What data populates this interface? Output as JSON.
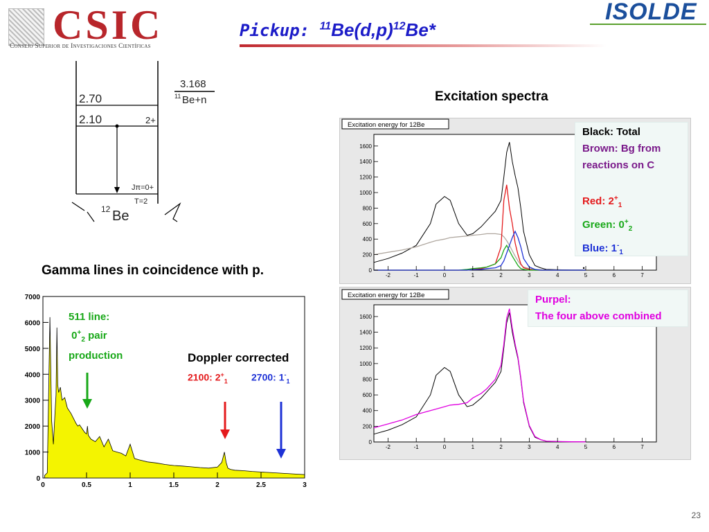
{
  "header": {
    "csic_name": "CSIC",
    "csic_full": "Consejo Superior de Investigaciones Científicas",
    "title_prefix": "Pickup: ",
    "title_sup1": "11",
    "title_mid": "Be(d,p)",
    "title_sup2": "12",
    "title_end": "Be*",
    "isolde_logo": "ISOLDE"
  },
  "level_scheme": {
    "threshold_value": "3.168",
    "threshold_label": "11Be+n",
    "threshold_sup": "11",
    "threshold_base": "Be+n",
    "level_1": "2.70",
    "level_2": "2.10",
    "level_2_spin": "2+",
    "ground_spin": "Jπ=0+",
    "ground_isospin": "T=2",
    "nucleus_sup": "12",
    "nucleus_base": "Be"
  },
  "captions": {
    "gamma": "Gamma lines in coincidence with p.",
    "excitation": "Excitation spectra"
  },
  "gamma_annotations": {
    "line511_a": "511 line:",
    "line511_b_pre": "0",
    "line511_b_sup": "+",
    "line511_b_sub": "2",
    "line511_b_post": " pair",
    "line511_c": "production",
    "doppler": "Doppler  corrected",
    "red_label_pre": "2100: 2",
    "red_label_sup": "+",
    "red_label_sub": "1",
    "blue_label_pre": "2700: 1",
    "blue_label_sup": "-",
    "blue_label_sub": "1"
  },
  "legend_top": {
    "black": "Black: Total",
    "brown_1": "Brown: Bg from",
    "brown_2": "reactions on C",
    "red_pre": "Red: 2",
    "red_sup": "+",
    "red_sub": "1",
    "green_pre": "Green: 0",
    "green_sup": "+",
    "green_sub": "2",
    "blue_pre": "Blue: 1",
    "blue_sup": "-",
    "blue_sub": "1",
    "dot": "."
  },
  "legend_bottom": {
    "line1": "Purpel:",
    "line2": "The four above combined"
  },
  "slide_number": "23",
  "colors": {
    "red": "#e41a1c",
    "green": "#18a818",
    "blue": "#1e32d6",
    "purple": "#7a1a8a",
    "magenta": "#e000e0",
    "brown": "#b0a8a0",
    "yellow": "#f4f400",
    "title_blue": "#1c1cc8"
  },
  "chart_data": [
    {
      "type": "area",
      "title": "",
      "xlabel": "",
      "ylabel": "",
      "xlim": [
        0,
        3
      ],
      "ylim": [
        0,
        7000
      ],
      "x_ticks": [
        "0",
        "0.5",
        "1",
        "1.5",
        "2",
        "2.5",
        "3"
      ],
      "y_ticks": [
        "0",
        "1000",
        "2000",
        "3000",
        "4000",
        "5000",
        "6000",
        "7000"
      ],
      "series": [
        {
          "x": [
            0.02,
            0.05,
            0.08,
            0.1,
            0.12,
            0.14,
            0.15,
            0.16,
            0.17,
            0.18,
            0.2,
            0.22,
            0.25,
            0.28,
            0.3,
            0.32,
            0.35,
            0.38,
            0.4,
            0.42,
            0.45,
            0.48,
            0.5,
            0.51,
            0.52,
            0.55,
            0.6,
            0.65,
            0.7,
            0.75,
            0.8,
            0.85,
            0.9,
            0.95,
            1.0,
            1.05,
            1.1,
            1.2,
            1.3,
            1.4,
            1.5,
            1.6,
            1.7,
            1.8,
            1.9,
            2.0,
            2.05,
            2.08,
            2.1,
            2.12,
            2.15,
            2.2,
            2.3,
            2.4,
            2.5,
            2.6,
            2.7,
            2.8,
            2.9,
            3.0
          ],
          "y": [
            100,
            200,
            6200,
            2200,
            1300,
            2600,
            3200,
            5800,
            3600,
            3300,
            3500,
            3000,
            3100,
            2700,
            2600,
            2500,
            2300,
            2100,
            2000,
            2050,
            1900,
            1750,
            1700,
            2000,
            1650,
            1500,
            1400,
            1600,
            1200,
            1500,
            1050,
            1000,
            950,
            850,
            1300,
            750,
            700,
            620,
            580,
            520,
            480,
            460,
            430,
            400,
            380,
            420,
            600,
            1000,
            600,
            380,
            330,
            300,
            280,
            250,
            230,
            210,
            190,
            170,
            150,
            130
          ]
        }
      ]
    },
    {
      "type": "line",
      "title": "Excitation energy for 12Be",
      "xlabel": "",
      "ylabel": "",
      "xlim": [
        -2.5,
        7.5
      ],
      "ylim": [
        0,
        1750
      ],
      "x_ticks": [
        "-2",
        "-1",
        "0",
        "1",
        "2",
        "3",
        "4",
        "5",
        "6",
        "7"
      ],
      "y_ticks": [
        "0",
        "200",
        "400",
        "600",
        "800",
        "1000",
        "1200",
        "1400",
        "1600"
      ],
      "x": [
        -2.5,
        -2,
        -1.5,
        -1,
        -0.5,
        -0.3,
        0,
        0.2,
        0.5,
        0.8,
        1,
        1.3,
        1.5,
        1.8,
        2,
        2.1,
        2.2,
        2.3,
        2.4,
        2.5,
        2.6,
        2.7,
        2.8,
        3,
        3.2,
        3.4,
        3.6,
        4,
        4.5,
        5
      ],
      "series": [
        {
          "name": "Black",
          "values": [
            100,
            150,
            220,
            320,
            600,
            850,
            950,
            900,
            600,
            450,
            470,
            560,
            640,
            760,
            900,
            1200,
            1520,
            1650,
            1400,
            1220,
            1060,
            800,
            500,
            200,
            60,
            30,
            10,
            5,
            3,
            2
          ]
        },
        {
          "name": "Brown",
          "values": [
            200,
            230,
            260,
            300,
            360,
            380,
            400,
            420,
            430,
            440,
            450,
            460,
            470,
            470,
            460,
            430,
            380,
            320,
            250,
            180,
            120,
            70,
            40,
            20,
            10,
            5,
            2,
            1,
            0,
            0
          ]
        },
        {
          "name": "Red",
          "values": [
            0,
            0,
            0,
            0,
            0,
            0,
            0,
            0,
            0,
            0,
            10,
            20,
            40,
            80,
            300,
            900,
            1100,
            800,
            600,
            350,
            200,
            80,
            30,
            10,
            0,
            0,
            0,
            0,
            0,
            0
          ]
        },
        {
          "name": "Green",
          "values": [
            0,
            0,
            0,
            0,
            0,
            0,
            0,
            0,
            0,
            10,
            20,
            30,
            40,
            80,
            160,
            260,
            320,
            250,
            180,
            120,
            60,
            20,
            10,
            0,
            0,
            0,
            0,
            0,
            0,
            0
          ]
        },
        {
          "name": "Blue",
          "values": [
            0,
            0,
            0,
            0,
            0,
            0,
            0,
            0,
            0,
            0,
            5,
            10,
            20,
            30,
            60,
            120,
            220,
            320,
            420,
            500,
            420,
            300,
            150,
            40,
            10,
            0,
            0,
            0,
            0,
            0
          ]
        }
      ]
    },
    {
      "type": "line",
      "title": "Excitation energy for 12Be",
      "xlabel": "",
      "ylabel": "",
      "xlim": [
        -2.5,
        7.5
      ],
      "ylim": [
        0,
        1750
      ],
      "x_ticks": [
        "-2",
        "-1",
        "0",
        "1",
        "2",
        "3",
        "4",
        "5",
        "6",
        "7"
      ],
      "y_ticks": [
        "0",
        "200",
        "400",
        "600",
        "800",
        "1000",
        "1200",
        "1400",
        "1600"
      ],
      "x": [
        -2.5,
        -2,
        -1.5,
        -1,
        -0.5,
        -0.3,
        0,
        0.2,
        0.5,
        0.8,
        1,
        1.3,
        1.5,
        1.8,
        2,
        2.1,
        2.2,
        2.3,
        2.4,
        2.5,
        2.6,
        2.7,
        2.8,
        3,
        3.2,
        3.4,
        3.6,
        4,
        4.5,
        5
      ],
      "series": [
        {
          "name": "Black",
          "values": [
            100,
            150,
            220,
            320,
            600,
            850,
            950,
            900,
            600,
            450,
            470,
            560,
            640,
            760,
            900,
            1200,
            1520,
            1650,
            1400,
            1220,
            1060,
            800,
            500,
            200,
            60,
            30,
            10,
            5,
            3,
            2
          ]
        },
        {
          "name": "Purpel",
          "values": [
            180,
            230,
            280,
            350,
            400,
            420,
            450,
            470,
            480,
            500,
            560,
            620,
            680,
            800,
            980,
            1250,
            1580,
            1700,
            1450,
            1250,
            1080,
            820,
            520,
            210,
            70,
            30,
            10,
            5,
            3,
            2
          ]
        }
      ]
    }
  ]
}
